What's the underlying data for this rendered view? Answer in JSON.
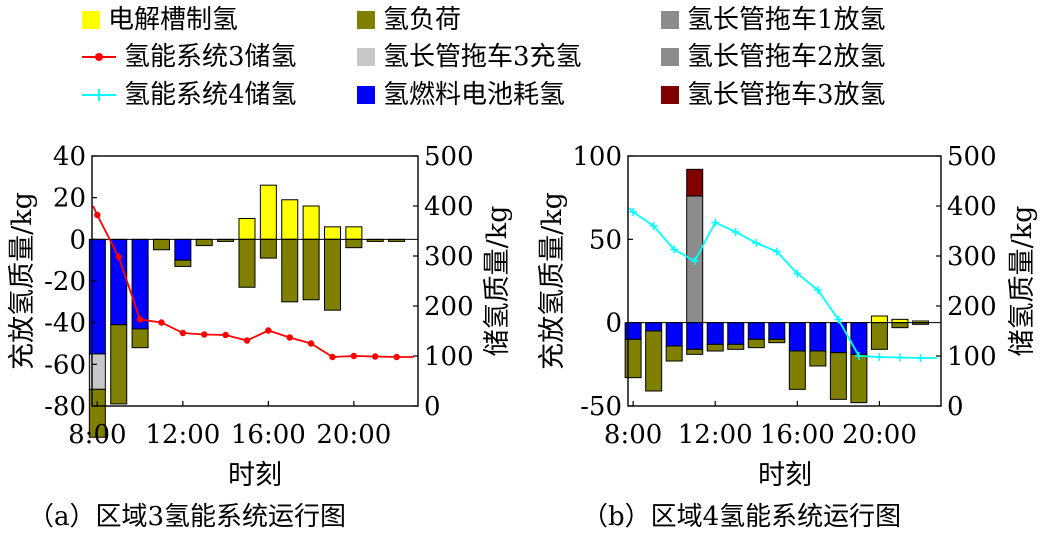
{
  "legend": [
    {
      "label": "电解槽制氢",
      "kind": "swatch",
      "color": "#ffff00"
    },
    {
      "label": "氢负荷",
      "kind": "swatch",
      "color": "#808000"
    },
    {
      "label": "氢长管拖车1放氢",
      "kind": "swatch",
      "color": "#8c8c8c"
    },
    {
      "label": "氢能系统3储氢",
      "kind": "line-dot",
      "color": "#ff0000"
    },
    {
      "label": "氢长管拖车3充氢",
      "kind": "swatch",
      "color": "#c8c8c8"
    },
    {
      "label": "氢长管拖车2放氢",
      "kind": "swatch",
      "color": "#8c8c8c"
    },
    {
      "label": "氢能系统4储氢",
      "kind": "line-plus",
      "color": "#00ffff"
    },
    {
      "label": "氢燃料电池耗氢",
      "kind": "swatch",
      "color": "#0000ff"
    },
    {
      "label": "氢长管拖车3放氢",
      "kind": "swatch",
      "color": "#800000"
    }
  ],
  "colors": {
    "electrolyzer": "#ffff00",
    "load": "#808000",
    "fuel_cell": "#0000ff",
    "trailer3_charge": "#c8c8c8",
    "trailer1_discharge": "#8c8c8c",
    "trailer2_discharge": "#8c8c8c",
    "trailer3_discharge": "#800000",
    "storage3_line": "#ff0000",
    "storage4_line": "#00ffff"
  },
  "chart_data": [
    {
      "type": "bar",
      "caption": "（a）区域3氢能系统运行图",
      "xlabel": "时刻",
      "ylabel_left": "充放氢质量/kg",
      "ylabel_right": "储氢质量/kg",
      "x_hours": [
        8,
        9,
        10,
        11,
        12,
        13,
        14,
        15,
        16,
        17,
        18,
        19,
        20,
        21,
        22
      ],
      "x_tick_labels": [
        "8:00",
        "12:00",
        "16:00",
        "20:00"
      ],
      "ylim_left": [
        -80,
        40
      ],
      "yticks_left": [
        -80,
        -60,
        -40,
        -20,
        0,
        20,
        40
      ],
      "ylim_right": [
        0,
        500
      ],
      "yticks_right": [
        0,
        100,
        200,
        300,
        400,
        500
      ],
      "series": [
        {
          "name": "电解槽制氢",
          "values": [
            0,
            0,
            0,
            0,
            0,
            0,
            0,
            10,
            26,
            19,
            16,
            6,
            6,
            0,
            0
          ]
        },
        {
          "name": "氢燃料电池耗氢",
          "values": [
            -55,
            -41,
            -43,
            0,
            -10,
            0,
            0,
            0,
            0,
            0,
            0,
            0,
            0,
            0,
            0
          ]
        },
        {
          "name": "氢长管拖车3充氢",
          "values": [
            -17,
            0,
            0,
            0,
            0,
            0,
            0,
            0,
            0,
            0,
            0,
            0,
            0,
            0,
            0
          ]
        },
        {
          "name": "氢负荷",
          "values": [
            -23,
            -38,
            -9,
            -5,
            -3,
            -3,
            -1,
            -23,
            -9,
            -30,
            -29,
            -34,
            -4,
            -1,
            -1
          ]
        }
      ],
      "line": {
        "name": "氢能系统3储氢",
        "x": [
          7.8,
          8,
          9,
          10,
          11,
          12,
          13,
          14,
          15,
          16,
          17,
          18,
          19,
          20,
          21,
          22,
          22.8
        ],
        "values": [
          400,
          382,
          298,
          173,
          167,
          146,
          143,
          142,
          131,
          151,
          137,
          125,
          98,
          100,
          99,
          98,
          98
        ]
      }
    },
    {
      "type": "bar",
      "caption": "（b）区域4氢能系统运行图",
      "xlabel": "时刻",
      "ylabel_left": "充放氢质量/kg",
      "ylabel_right": "储氢质量/kg",
      "x_hours": [
        8,
        9,
        10,
        11,
        12,
        13,
        14,
        15,
        16,
        17,
        18,
        19,
        20,
        21,
        22
      ],
      "x_tick_labels": [
        "8:00",
        "12:00",
        "16:00",
        "20:00"
      ],
      "ylim_left": [
        -50,
        100
      ],
      "yticks_left": [
        -50,
        0,
        50,
        100
      ],
      "ylim_right": [
        0,
        500
      ],
      "yticks_right": [
        0,
        100,
        200,
        300,
        400,
        500
      ],
      "series": [
        {
          "name": "电解槽制氢",
          "values": [
            0,
            0,
            0,
            0,
            0,
            0,
            0,
            0,
            0,
            0,
            0,
            0,
            4,
            2,
            1
          ]
        },
        {
          "name": "氢长管拖车1放氢",
          "values": [
            0,
            0,
            0,
            76,
            0,
            0,
            0,
            0,
            0,
            0,
            0,
            0,
            0,
            0,
            0
          ]
        },
        {
          "name": "氢长管拖车3放氢",
          "values": [
            0,
            0,
            0,
            16,
            0,
            0,
            0,
            0,
            0,
            0,
            0,
            0,
            0,
            0,
            0
          ]
        },
        {
          "name": "氢燃料电池耗氢",
          "values": [
            -10,
            -5,
            -14,
            -16,
            -13,
            -13,
            -10,
            -10,
            -17,
            -17,
            -18,
            -19,
            0,
            0,
            0
          ]
        },
        {
          "name": "氢负荷",
          "values": [
            -23,
            -36,
            -9,
            -3,
            -4,
            -3,
            -5,
            -2,
            -23,
            -9,
            -28,
            -29,
            -16,
            -3,
            -1
          ]
        }
      ],
      "line": {
        "name": "氢能系统4储氢",
        "x": [
          7.8,
          8,
          9,
          10,
          11,
          12,
          13,
          14,
          15,
          16,
          17,
          18,
          19,
          20,
          21,
          22,
          22.8
        ],
        "values": [
          396,
          388,
          360,
          313,
          290,
          367,
          348,
          326,
          309,
          265,
          232,
          173,
          100,
          98,
          97,
          96,
          96
        ]
      }
    }
  ]
}
